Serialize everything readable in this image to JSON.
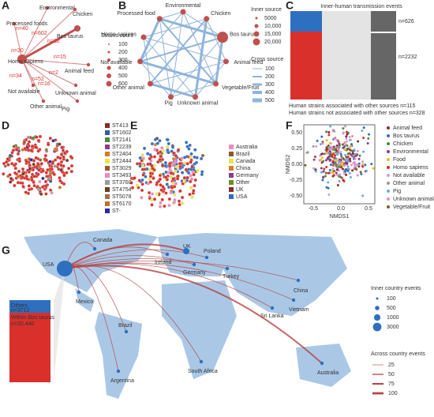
{
  "panel_labels": [
    "A",
    "B",
    "C",
    "D",
    "E",
    "F",
    "G"
  ],
  "panel_a": {
    "nodes": [
      "Environmental",
      "Chicken",
      "Processed foods",
      "Bos taurus",
      "Homo sapiens",
      "Animal feed",
      "Not available",
      "Unknown animal",
      "Other animal",
      "Pig"
    ],
    "edge_labels": [
      "n=40",
      "n=602",
      "n=32",
      "n=15",
      "n=20",
      "n=34",
      "n=52",
      "n=16",
      "n=2"
    ],
    "legend_title": "Strains count",
    "legend_items": [
      "100",
      "200",
      "300",
      "400",
      "500",
      "600"
    ]
  },
  "panel_b": {
    "nodes": [
      "Environmental",
      "Chicken",
      "Bos taurus",
      "Animal feed",
      "Vegetable/Fruit",
      "Unknown animal",
      "Pig",
      "Other animal",
      "Not available",
      "Homo sapiens",
      "Processed food"
    ],
    "inner_title": "Inner source",
    "inner_items": [
      "5000",
      "10,000",
      "15,000",
      "20,000"
    ],
    "cross_title": "Cross source",
    "cross_items": [
      "100",
      "200",
      "300",
      "400",
      "500"
    ]
  },
  "panel_c": {
    "title": "Inner-human transmission events",
    "counts": [
      "n=626",
      "n=2232"
    ],
    "note_1": "Human strains associated with other sources n=115",
    "note_2": "Human strains not associated with other sources n=328"
  },
  "panel_d": {
    "legend": [
      {
        "label": "ST413",
        "color": "#8b2a2a"
      },
      {
        "label": "ST1602",
        "color": "#2f5f9e"
      },
      {
        "label": "ST2141",
        "color": "#4d8a3a"
      },
      {
        "label": "ST2239",
        "color": "#8d3b8f"
      },
      {
        "label": "ST2404",
        "color": "#d97b27"
      },
      {
        "label": "ST2444",
        "color": "#e6e64a"
      },
      {
        "label": "ST3029",
        "color": "#9c5a2c"
      },
      {
        "label": "ST3493",
        "color": "#e88cc0"
      },
      {
        "label": "ST3760",
        "color": "#9a9a9a"
      },
      {
        "label": "ST4754",
        "color": "#6b3d1f"
      },
      {
        "label": "ST5078",
        "color": "#a07050"
      },
      {
        "label": "ST6170",
        "color": "#c0702a"
      },
      {
        "label": "ST-",
        "color": "#2a2a9e"
      }
    ]
  },
  "panel_e": {
    "legend": [
      {
        "label": "Australia",
        "color": "#e88cc0"
      },
      {
        "label": "Brazil",
        "color": "#8b5a2b"
      },
      {
        "label": "Canada",
        "color": "#e6e64a"
      },
      {
        "label": "China",
        "color": "#d97b27"
      },
      {
        "label": "Germany",
        "color": "#8d3b8f"
      },
      {
        "label": "Other",
        "color": "#6b8e23"
      },
      {
        "label": "UK",
        "color": "#8b2a2a"
      },
      {
        "label": "USA",
        "color": "#2f6fc0"
      }
    ]
  },
  "panel_f": {
    "x_label": "NMDS1",
    "y_label": "NMDS2",
    "xticks": [
      "-0.5",
      "0.0",
      "0.5"
    ],
    "yticks": [
      "0.50",
      "0.25",
      "0.00",
      "-0.25",
      "-0.50"
    ],
    "legend": [
      {
        "label": "Animal feed",
        "color": "#8b2a2a"
      },
      {
        "label": "Bos taurus",
        "color": "#2f6fc0"
      },
      {
        "label": "Chicken",
        "color": "#4d8a3a"
      },
      {
        "label": "Environmental",
        "color": "#8d3b8f"
      },
      {
        "label": "Food",
        "color": "#e6c020"
      },
      {
        "label": "Homo sapiens",
        "color": "#d9302b"
      },
      {
        "label": "Not available",
        "color": "#c8a0d8"
      },
      {
        "label": "Other animal",
        "color": "#9a9a9a"
      },
      {
        "label": "Pig",
        "color": "#6fa8dc"
      },
      {
        "label": "Unknown animal",
        "color": "#e88cc0"
      },
      {
        "label": "Vegetable/Fruit",
        "color": "#8b5a2b"
      }
    ]
  },
  "panel_g": {
    "countries": [
      "USA",
      "Canada",
      "Mexico",
      "Brazil",
      "Argentina",
      "South Africa",
      "Ireland",
      "UK",
      "Poland",
      "Germany",
      "Turkey",
      "China",
      "Sri Lanka",
      "Vietnam",
      "Australia"
    ],
    "others": "Others",
    "others_n": "n=3712",
    "within": "Within Bos taurus",
    "within_n": "n=20,440",
    "inner_title": "Inner country events",
    "inner_items": [
      "100",
      "500",
      "1000",
      "3000"
    ],
    "across_title": "Across country events",
    "across_items": [
      "25",
      "50",
      "75",
      "100"
    ]
  }
}
